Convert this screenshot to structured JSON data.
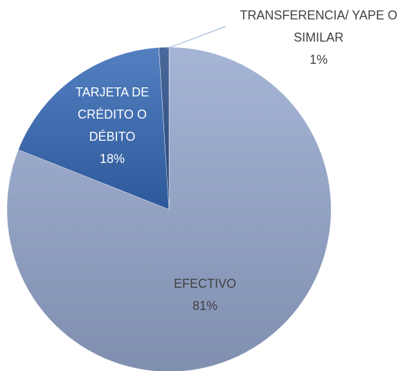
{
  "chart_data": {
    "type": "pie",
    "categories": [
      "EFECTIVO",
      "TARJETA DE CRÉDITO O DÉBITO",
      "TRANSFERENCIA/ YAPE O SIMILAR"
    ],
    "values": [
      81,
      18,
      1
    ],
    "value_labels": [
      "81%",
      "18%",
      "1%"
    ],
    "colors": [
      "#96a8cf",
      "#3569b5",
      "#2b4f8a"
    ]
  }
}
